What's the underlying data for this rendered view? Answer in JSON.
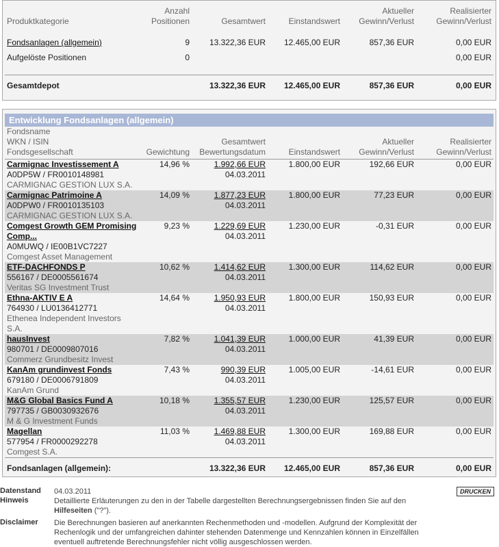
{
  "summary": {
    "headers": [
      "Produktkategorie",
      "Anzahl\nPositionen",
      "Gesamtwert",
      "Einstandswert",
      "Aktueller\nGewinn/Verlust",
      "Realisierter\nGewinn/Verlust"
    ],
    "rows": [
      [
        "Fondsanlagen (allgemein)",
        "9",
        "13.322,36 EUR",
        "12.465,00 EUR",
        "857,36 EUR",
        "0,00 EUR"
      ],
      [
        "Aufgelöste Positionen",
        "0",
        "",
        "",
        "",
        "0,00 EUR"
      ]
    ],
    "total": [
      "Gesamtdepot",
      "",
      "13.322,36 EUR",
      "12.465,00 EUR",
      "857,36 EUR",
      "0,00 EUR"
    ]
  },
  "detail": {
    "title": "Entwicklung Fondsanlagen (allgemein)",
    "headers": [
      "Fondsname\nWKN / ISIN\nFondsgesellschaft",
      "Gewichtung",
      "Gesamtwert\nBewertungsdatum",
      "Einstandswert",
      "Aktueller\nGewinn/Verlust",
      "Realisierter\nGewinn/Verlust"
    ],
    "rows": [
      {
        "name": "Carmignac Investissement A",
        "code": "A0DP5W / FR0010148981",
        "company": "CARMIGNAC GESTION LUX S.A.",
        "weight": "14,96 %",
        "value": "1.992,66 EUR",
        "date": "04.03.2011",
        "cost": "1.800,00 EUR",
        "gain": "192,66 EUR",
        "realized": "0,00 EUR"
      },
      {
        "name": "Carmignac Patrimoine A",
        "code": "A0DPW0 / FR0010135103",
        "company": "CARMIGNAC GESTION LUX S.A.",
        "weight": "14,09 %",
        "value": "1.877,23 EUR",
        "date": "04.03.2011",
        "cost": "1.800,00 EUR",
        "gain": "77,23 EUR",
        "realized": "0,00 EUR"
      },
      {
        "name": "Comgest Growth GEM Promising Comp...",
        "code": "A0MUWQ / IE00B1VC7227",
        "company": "Comgest Asset Management",
        "weight": "9,23 %",
        "value": "1.229,69 EUR",
        "date": "04.03.2011",
        "cost": "1.230,00 EUR",
        "gain": "-0,31 EUR",
        "realized": "0,00 EUR"
      },
      {
        "name": "ETF-DACHFONDS P",
        "code": "556167 / DE0005561674",
        "company": "Veritas SG Investment Trust",
        "weight": "10,62 %",
        "value": "1.414,62 EUR",
        "date": "04.03.2011",
        "cost": "1.300,00 EUR",
        "gain": "114,62 EUR",
        "realized": "0,00 EUR"
      },
      {
        "name": "Ethna-AKTIV E A",
        "code": "764930 / LU0136412771",
        "company": "Ethenea Independent Investors S.A.",
        "weight": "14,64 %",
        "value": "1.950,93 EUR",
        "date": "04.03.2011",
        "cost": "1.800,00 EUR",
        "gain": "150,93 EUR",
        "realized": "0,00 EUR"
      },
      {
        "name": "hausInvest",
        "code": "980701 / DE0009807016",
        "company": "Commerz Grundbesitz Invest",
        "weight": "7,82 %",
        "value": "1.041,39 EUR",
        "date": "04.03.2011",
        "cost": "1.000,00 EUR",
        "gain": "41,39 EUR",
        "realized": "0,00 EUR"
      },
      {
        "name": "KanAm grundinvest Fonds",
        "code": "679180 / DE0006791809",
        "company": "KanAm Grund",
        "weight": "7,43 %",
        "value": "990,39 EUR",
        "date": "04.03.2011",
        "cost": "1.005,00 EUR",
        "gain": "-14,61 EUR",
        "realized": "0,00 EUR"
      },
      {
        "name": "M&G Global Basics Fund A",
        "code": "797735 / GB0030932676",
        "company": "M & G Investment Funds",
        "weight": "10,18 %",
        "value": "1.355,57 EUR",
        "date": "04.03.2011",
        "cost": "1.230,00 EUR",
        "gain": "125,57 EUR",
        "realized": "0,00 EUR"
      },
      {
        "name": "Magellan",
        "code": "577954 / FR0000292278",
        "company": "Comgest S.A.",
        "weight": "11,03 %",
        "value": "1.469,88 EUR",
        "date": "04.03.2011",
        "cost": "1.300,00 EUR",
        "gain": "169,88 EUR",
        "realized": "0,00 EUR"
      }
    ],
    "total": [
      "Fondsanlagen (allgemein):",
      "",
      "13.322,36 EUR",
      "12.465,00 EUR",
      "857,36 EUR",
      "0,00 EUR"
    ]
  },
  "footer": {
    "stand_label": "Datenstand",
    "stand": "04.03.2011",
    "hint_label": "Hinweis",
    "hint": [
      "Detaillierte Erläuterungen zu den in der Tabelle dargestellten Berechnungsergebnissen finden Sie auf den ",
      "Hilfeseiten",
      " (\"?\")."
    ],
    "disclaimer_label": "Disclaimer",
    "disclaimer": "Die Berechnungen basieren auf anerkannten Rechenmethoden und -modellen. Aufgrund der Komplexität der Rechenlogik und der umfangreichen dahinter stehenden Datenmenge und Kennzahlen können in Einzelfällen eventuell auftretende Berechnungsfehler nicht völlig ausgeschlossen werden.",
    "print": "DRUCKEN"
  }
}
